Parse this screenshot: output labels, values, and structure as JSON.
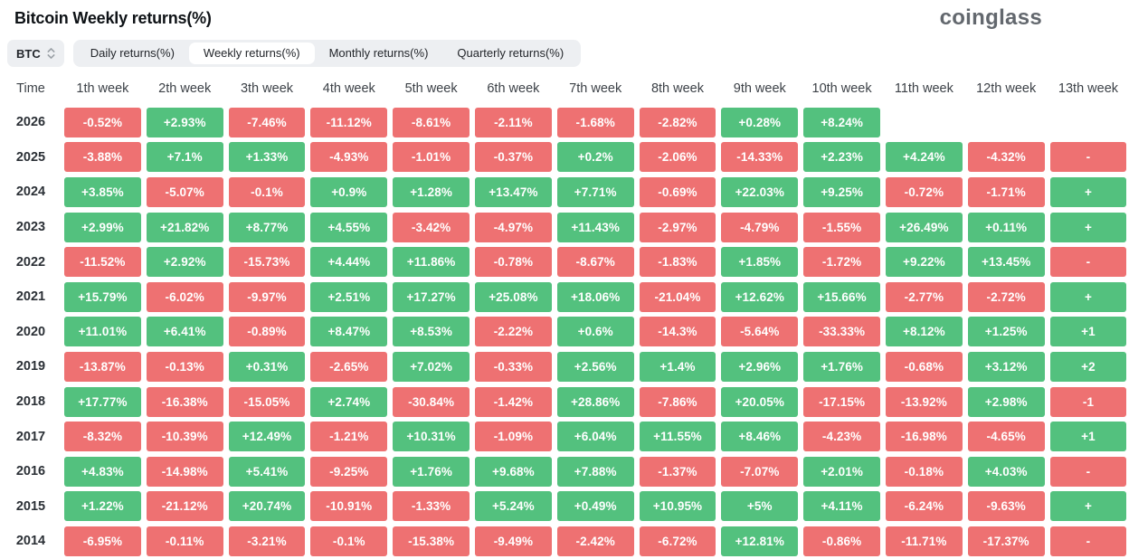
{
  "header": {
    "title": "Bitcoin Weekly returns(%)",
    "logo": "coinglass"
  },
  "controls": {
    "symbol_selector": {
      "label": "BTC"
    },
    "tabs": [
      {
        "label": "Daily returns(%)",
        "active": false
      },
      {
        "label": "Weekly returns(%)",
        "active": true
      },
      {
        "label": "Monthly returns(%)",
        "active": false
      },
      {
        "label": "Quarterly returns(%)",
        "active": false
      }
    ]
  },
  "chart_data": {
    "type": "heatmap",
    "title": "Bitcoin Weekly returns(%)",
    "row_label_header": "Time",
    "columns": [
      "1th week",
      "2th week",
      "3th week",
      "4th week",
      "5th week",
      "6th week",
      "7th week",
      "8th week",
      "9th week",
      "10th week",
      "11th week",
      "12th week",
      "13th week"
    ],
    "positive_color": "#53c17e",
    "negative_color": "#ee7172",
    "rows": [
      {
        "year": "2026",
        "values": [
          "-0.52%",
          "+2.93%",
          "-7.46%",
          "-11.12%",
          "-8.61%",
          "-2.11%",
          "-1.68%",
          "-2.82%",
          "+0.28%",
          "+8.24%"
        ]
      },
      {
        "year": "2025",
        "values": [
          "-3.88%",
          "+7.1%",
          "+1.33%",
          "-4.93%",
          "-1.01%",
          "-0.37%",
          "+0.2%",
          "-2.06%",
          "-14.33%",
          "+2.23%",
          "+4.24%",
          "-4.32%",
          "-"
        ]
      },
      {
        "year": "2024",
        "values": [
          "+3.85%",
          "-5.07%",
          "-0.1%",
          "+0.9%",
          "+1.28%",
          "+13.47%",
          "+7.71%",
          "-0.69%",
          "+22.03%",
          "+9.25%",
          "-0.72%",
          "-1.71%",
          "+"
        ]
      },
      {
        "year": "2023",
        "values": [
          "+2.99%",
          "+21.82%",
          "+8.77%",
          "+4.55%",
          "-3.42%",
          "-4.97%",
          "+11.43%",
          "-2.97%",
          "-4.79%",
          "-1.55%",
          "+26.49%",
          "+0.11%",
          "+"
        ]
      },
      {
        "year": "2022",
        "values": [
          "-11.52%",
          "+2.92%",
          "-15.73%",
          "+4.44%",
          "+11.86%",
          "-0.78%",
          "-8.67%",
          "-1.83%",
          "+1.85%",
          "-1.72%",
          "+9.22%",
          "+13.45%",
          "-"
        ]
      },
      {
        "year": "2021",
        "values": [
          "+15.79%",
          "-6.02%",
          "-9.97%",
          "+2.51%",
          "+17.27%",
          "+25.08%",
          "+18.06%",
          "-21.04%",
          "+12.62%",
          "+15.66%",
          "-2.77%",
          "-2.72%",
          "+"
        ]
      },
      {
        "year": "2020",
        "values": [
          "+11.01%",
          "+6.41%",
          "-0.89%",
          "+8.47%",
          "+8.53%",
          "-2.22%",
          "+0.6%",
          "-14.3%",
          "-5.64%",
          "-33.33%",
          "+8.12%",
          "+1.25%",
          "+1"
        ]
      },
      {
        "year": "2019",
        "values": [
          "-13.87%",
          "-0.13%",
          "+0.31%",
          "-2.65%",
          "+7.02%",
          "-0.33%",
          "+2.56%",
          "+1.4%",
          "+2.96%",
          "+1.76%",
          "-0.68%",
          "+3.12%",
          "+2"
        ]
      },
      {
        "year": "2018",
        "values": [
          "+17.77%",
          "-16.38%",
          "-15.05%",
          "+2.74%",
          "-30.84%",
          "-1.42%",
          "+28.86%",
          "-7.86%",
          "+20.05%",
          "-17.15%",
          "-13.92%",
          "+2.98%",
          "-1"
        ]
      },
      {
        "year": "2017",
        "values": [
          "-8.32%",
          "-10.39%",
          "+12.49%",
          "-1.21%",
          "+10.31%",
          "-1.09%",
          "+6.04%",
          "+11.55%",
          "+8.46%",
          "-4.23%",
          "-16.98%",
          "-4.65%",
          "+1"
        ]
      },
      {
        "year": "2016",
        "values": [
          "+4.83%",
          "-14.98%",
          "+5.41%",
          "-9.25%",
          "+1.76%",
          "+9.68%",
          "+7.88%",
          "-1.37%",
          "-7.07%",
          "+2.01%",
          "-0.18%",
          "+4.03%",
          "-"
        ]
      },
      {
        "year": "2015",
        "values": [
          "+1.22%",
          "-21.12%",
          "+20.74%",
          "-10.91%",
          "-1.33%",
          "+5.24%",
          "+0.49%",
          "+10.95%",
          "+5%",
          "+4.11%",
          "-6.24%",
          "-9.63%",
          "+"
        ]
      },
      {
        "year": "2014",
        "values": [
          "-6.95%",
          "-0.11%",
          "-3.21%",
          "-0.1%",
          "-15.38%",
          "-9.49%",
          "-2.42%",
          "-6.72%",
          "+12.81%",
          "-0.86%",
          "-11.71%",
          "-17.37%",
          "-"
        ]
      }
    ]
  }
}
